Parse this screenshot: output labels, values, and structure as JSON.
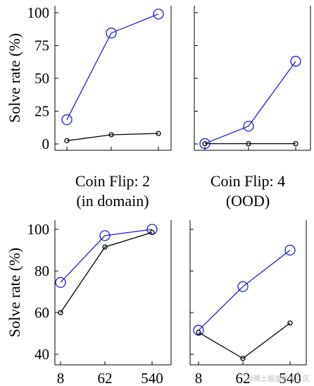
{
  "watermark": "@稀土掘金技术社区",
  "chart_data": [
    {
      "type": "line",
      "title": "",
      "ylabel": "Solve rate (%)",
      "ylim": [
        0,
        100
      ],
      "yticks": [
        0,
        25,
        50,
        75,
        100
      ],
      "x_ticks": [],
      "series": [
        {
          "color": "#1f1fd0",
          "marker": "large-circle",
          "values": [
            18.5,
            84.5,
            99
          ]
        },
        {
          "color": "#000000",
          "marker": "small-circle",
          "values": [
            2.5,
            7,
            8
          ]
        }
      ]
    },
    {
      "type": "line",
      "title": "",
      "ylabel": "",
      "ylim": [
        0,
        100
      ],
      "yticks": [
        0,
        25,
        50,
        75,
        100
      ],
      "x_ticks": [],
      "series": [
        {
          "color": "#1f1fd0",
          "marker": "large-circle",
          "values": [
            0.3,
            13.5,
            63
          ]
        },
        {
          "color": "#000000",
          "marker": "small-circle",
          "values": [
            0.2,
            0.2,
            0.2
          ]
        }
      ]
    },
    {
      "type": "line",
      "title_lines": [
        "Coin Flip: 2",
        "(in domain)"
      ],
      "ylabel": "Solve rate (%)",
      "ylim": [
        36,
        102
      ],
      "yticks": [
        40,
        60,
        80,
        100
      ],
      "x_ticks": [
        "8",
        "62",
        "540"
      ],
      "series": [
        {
          "color": "#1f1fd0",
          "marker": "large-circle",
          "values": [
            74.5,
            97,
            100
          ]
        },
        {
          "color": "#000000",
          "marker": "small-circle",
          "values": [
            60,
            91.5,
            98.5
          ]
        }
      ]
    },
    {
      "type": "line",
      "title_lines": [
        "Coin Flip: 4",
        "(OOD)"
      ],
      "ylabel": "",
      "ylim": [
        36,
        102
      ],
      "yticks": [
        40,
        60,
        80,
        100
      ],
      "x_ticks": [
        "8",
        "62",
        "540"
      ],
      "series": [
        {
          "color": "#1f1fd0",
          "marker": "large-circle",
          "values": [
            51.5,
            72.5,
            90
          ]
        },
        {
          "color": "#000000",
          "marker": "small-circle",
          "values": [
            50.5,
            38,
            55
          ]
        }
      ]
    }
  ]
}
